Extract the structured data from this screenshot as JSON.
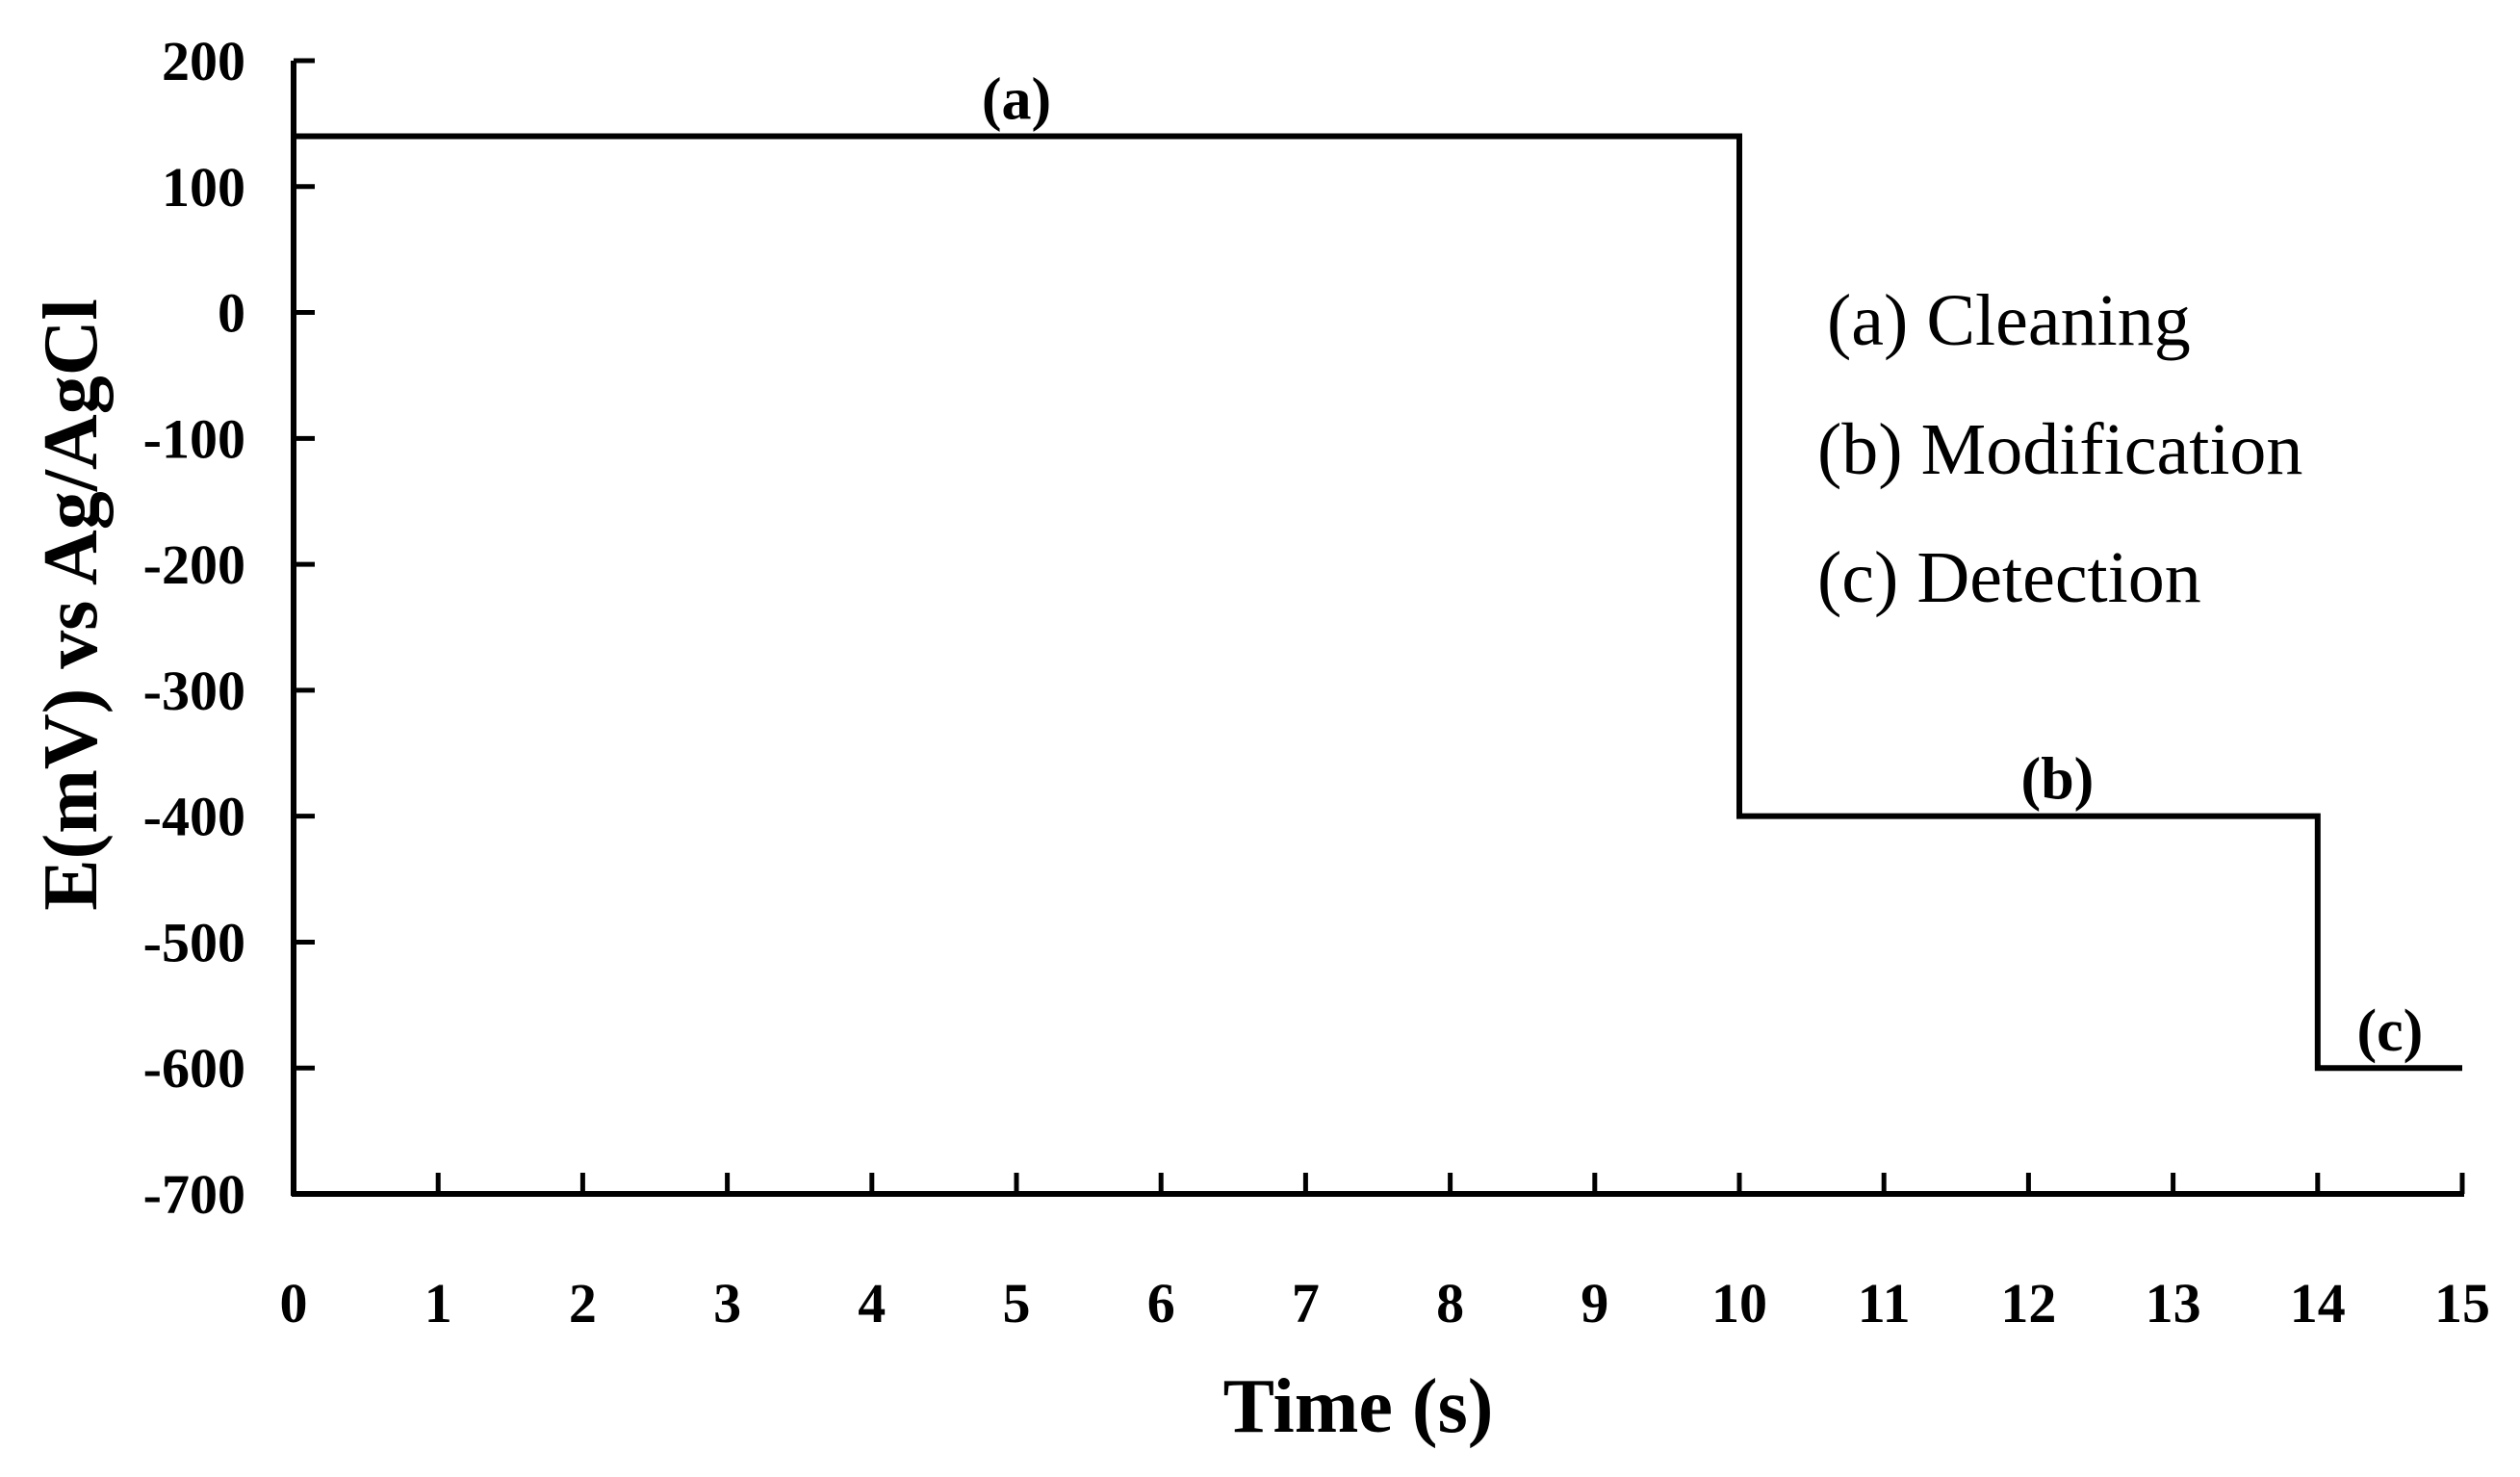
{
  "chart_data": {
    "type": "line",
    "title": "",
    "xlabel": "Time (s)",
    "ylabel": "E(mV) vs Ag/AgCl",
    "xlim": [
      0,
      15
    ],
    "ylim": [
      -700,
      200
    ],
    "xticks": [
      "0",
      "1",
      "2",
      "3",
      "4",
      "5",
      "6",
      "7",
      "8",
      "9",
      "10",
      "11",
      "12",
      "13",
      "14",
      "15"
    ],
    "yticks": [
      "200",
      "100",
      "0",
      "-100",
      "-200",
      "-300",
      "-400",
      "-500",
      "-600",
      "-700"
    ],
    "grid": false,
    "series": [
      {
        "values": [
          {
            "x": 0,
            "y": 140
          },
          {
            "x": 10,
            "y": 140
          },
          {
            "x": 10,
            "y": -400
          },
          {
            "x": 14,
            "y": -400
          },
          {
            "x": 14,
            "y": -600
          },
          {
            "x": 15,
            "y": -600
          }
        ]
      }
    ],
    "annotations": [
      {
        "text": "(a)",
        "x": 5,
        "y": 140
      },
      {
        "text": "(b)",
        "x": 12.2,
        "y": -400
      },
      {
        "text": "(c)",
        "x": 14.5,
        "y": -600
      }
    ],
    "legend": {
      "placement": "right",
      "entries": [
        "(a) Cleaning",
        "(b) Modification",
        "(c) Detection"
      ]
    },
    "line_color": "#000000"
  }
}
